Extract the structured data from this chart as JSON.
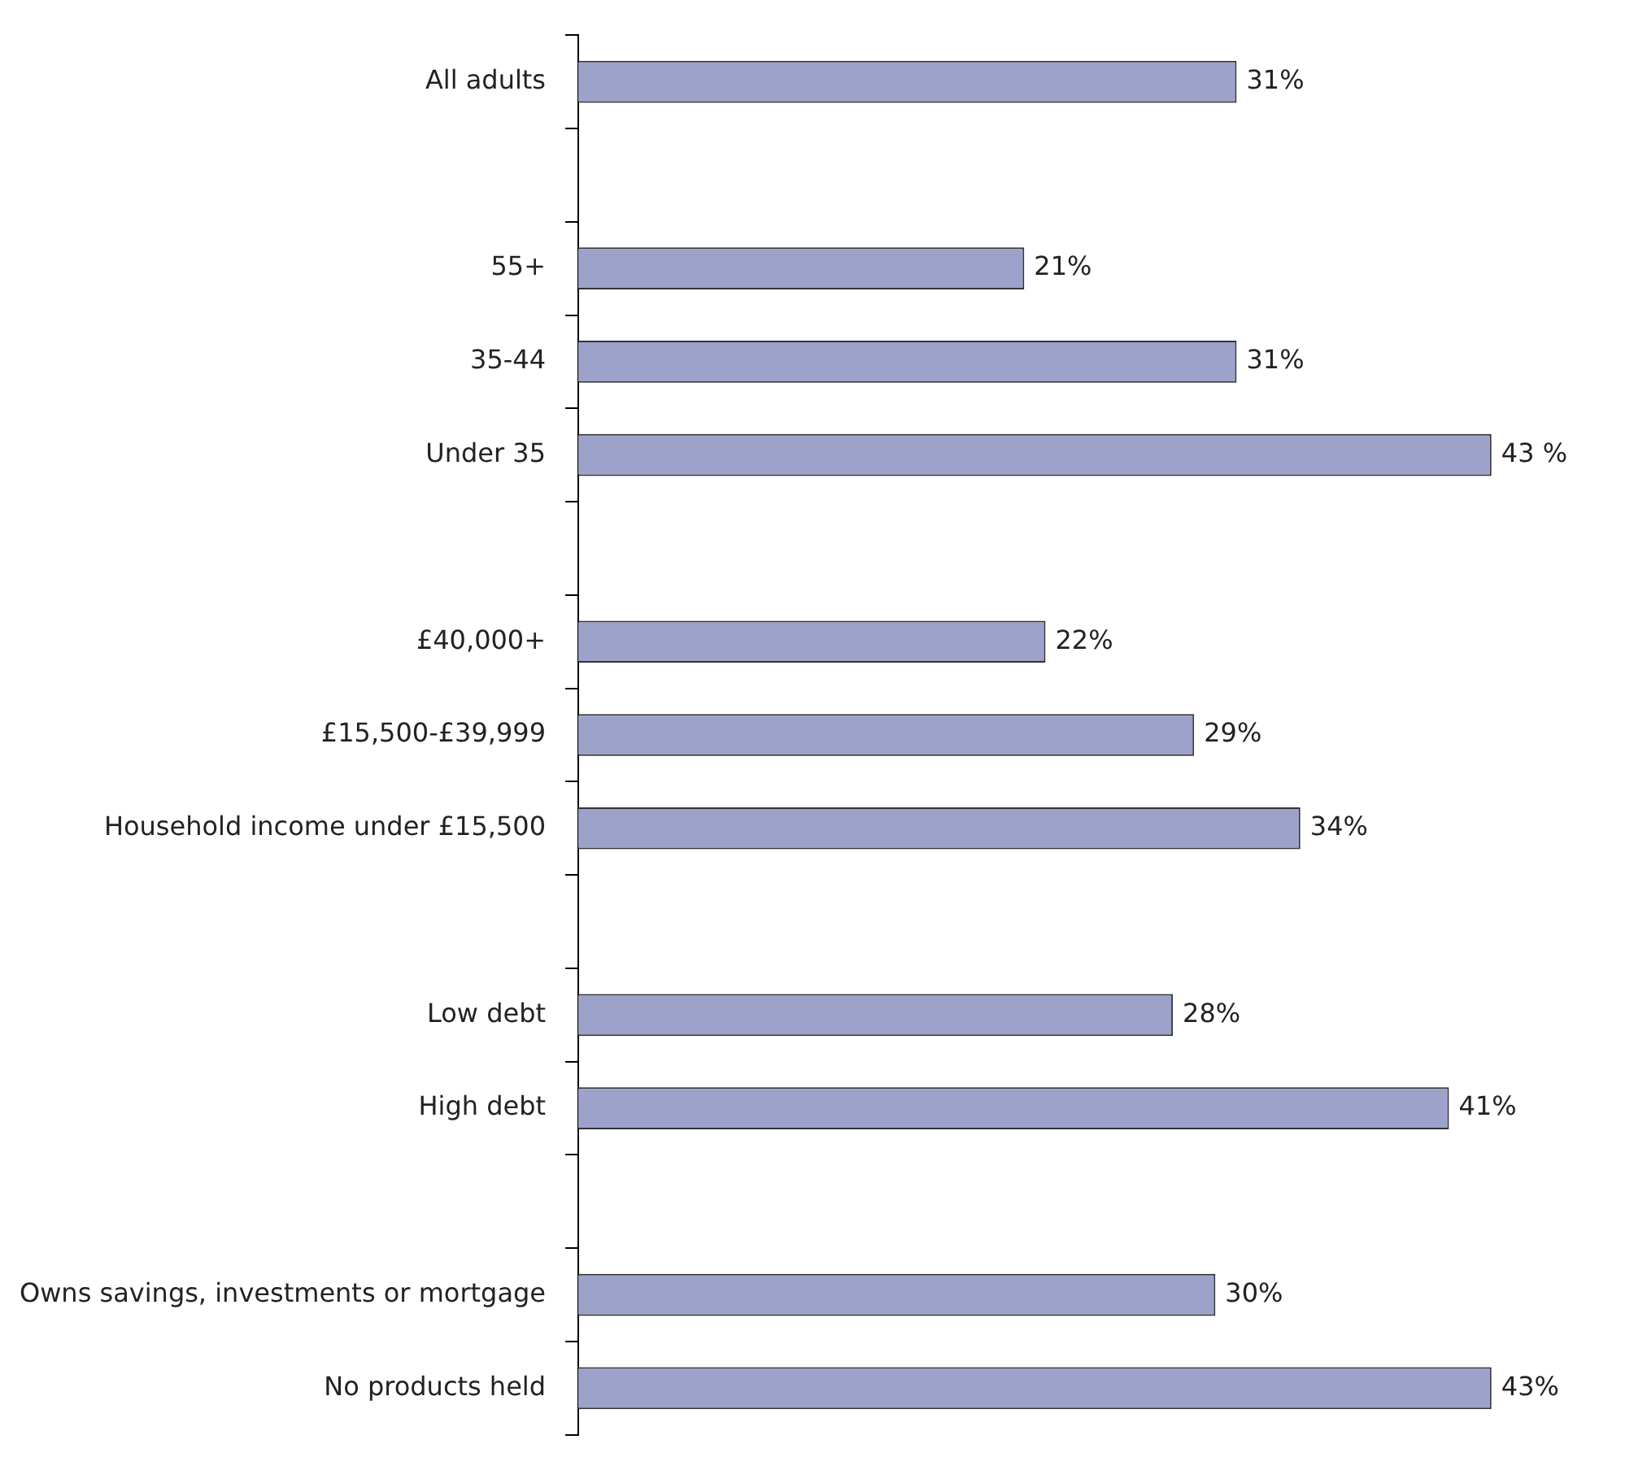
{
  "chart_data": {
    "type": "bar",
    "orientation": "horizontal",
    "categories": [
      "All adults",
      null,
      "55+",
      "35-44",
      "Under 35",
      null,
      "£40,000+",
      "£15,500-£39,999",
      "Household income under £15,500",
      null,
      "Low debt",
      "High debt",
      null,
      "Owns savings, investments or mortgage",
      "No products held"
    ],
    "values": [
      31,
      null,
      21,
      31,
      43,
      null,
      22,
      29,
      34,
      null,
      28,
      41,
      null,
      30,
      43
    ],
    "value_labels": [
      "31%",
      null,
      "21%",
      "31%",
      "43 %",
      null,
      "22%",
      "29%",
      "34%",
      null,
      "28%",
      "41%",
      null,
      "30%",
      "43%"
    ],
    "color": "#9da2cb",
    "legend": false
  }
}
